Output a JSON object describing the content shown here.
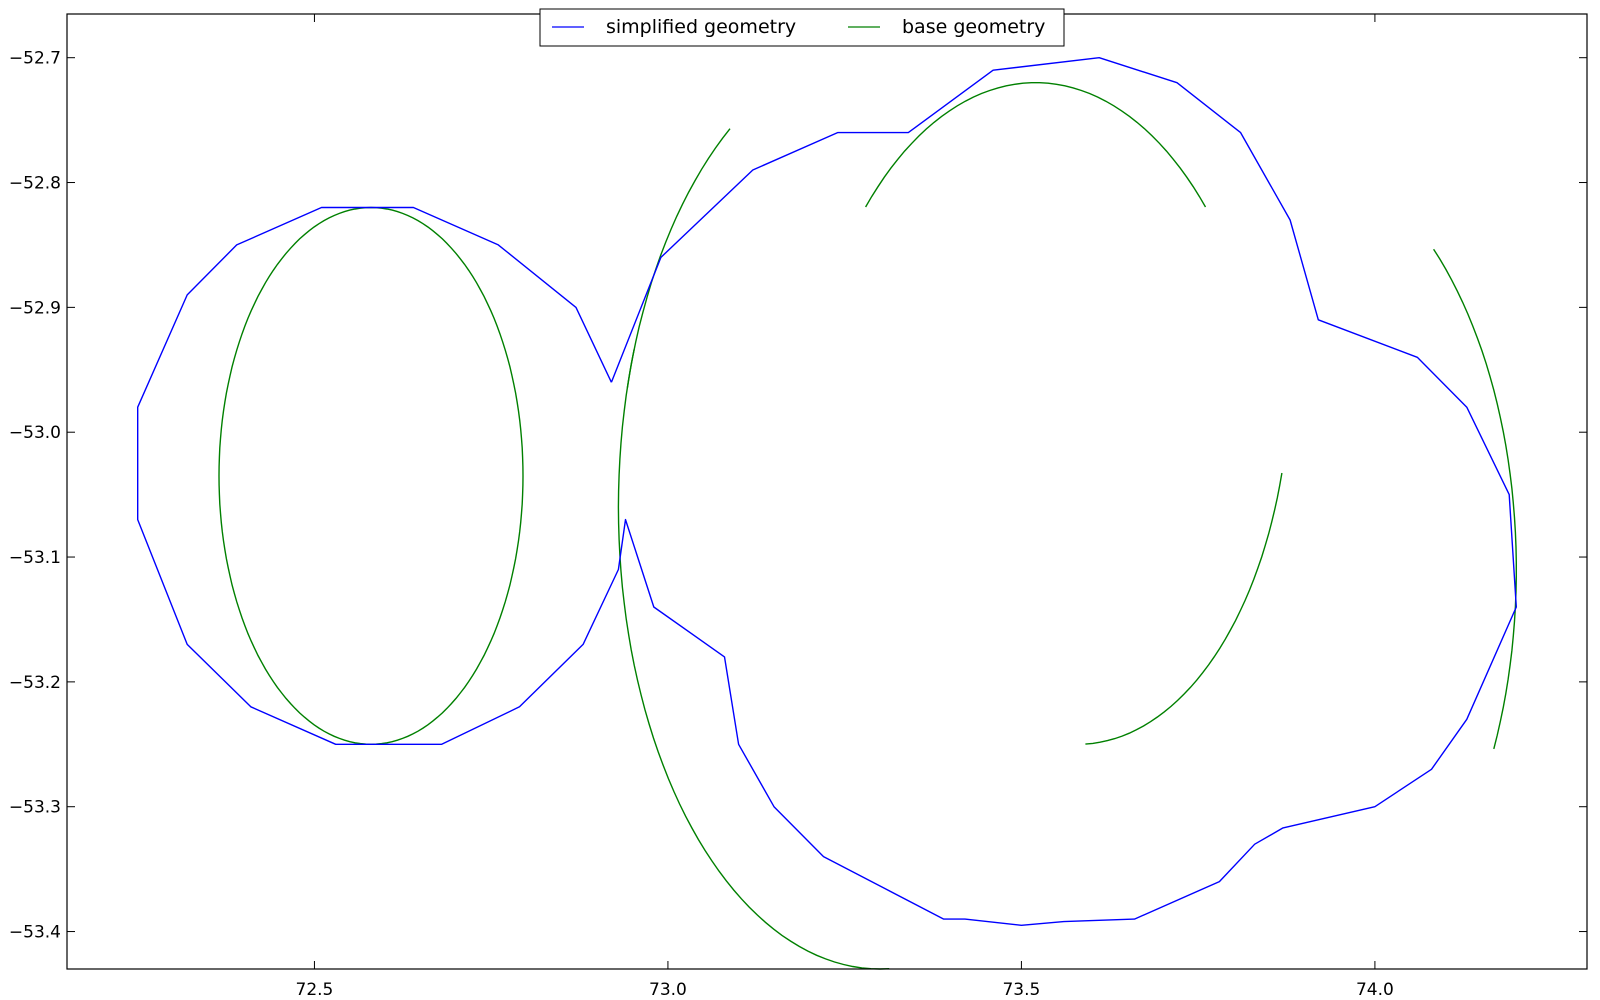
{
  "chart_data": {
    "type": "line",
    "title": "",
    "xlabel": "",
    "ylabel": "",
    "xlim": [
      72.15,
      74.3
    ],
    "ylim": [
      -53.43,
      -52.665
    ],
    "grid": false,
    "legend_position": "top-center",
    "x_ticks": [
      72.5,
      73.0,
      73.5,
      74.0
    ],
    "x_tick_labels": [
      "72.5",
      "73.0",
      "73.5",
      "74.0"
    ],
    "y_ticks": [
      -52.7,
      -52.8,
      -52.9,
      -53.0,
      -53.1,
      -53.2,
      -53.3,
      -53.4
    ],
    "y_tick_labels": [
      "−52.7",
      "−52.8",
      "−52.9",
      "−53.0",
      "−53.1",
      "−53.2",
      "−53.3",
      "−53.4"
    ],
    "series": [
      {
        "name": "simplified geometry",
        "color": "#0000ff",
        "points": [
          [
            72.92,
            -52.96
          ],
          [
            72.87,
            -52.9
          ],
          [
            72.76,
            -52.85
          ],
          [
            72.64,
            -52.82
          ],
          [
            72.51,
            -52.82
          ],
          [
            72.39,
            -52.85
          ],
          [
            72.32,
            -52.89
          ],
          [
            72.25,
            -52.98
          ],
          [
            72.25,
            -53.07
          ],
          [
            72.32,
            -53.17
          ],
          [
            72.41,
            -53.22
          ],
          [
            72.53,
            -53.25
          ],
          [
            72.68,
            -53.25
          ],
          [
            72.79,
            -53.22
          ],
          [
            72.88,
            -53.17
          ],
          [
            72.93,
            -53.11
          ],
          [
            72.94,
            -53.07
          ],
          [
            72.98,
            -53.14
          ],
          [
            73.08,
            -53.18
          ],
          [
            73.1,
            -53.25
          ],
          [
            73.15,
            -53.3
          ],
          [
            73.22,
            -53.34
          ],
          [
            73.39,
            -53.39
          ],
          [
            73.42,
            -53.39
          ],
          [
            73.5,
            -53.395
          ],
          [
            73.56,
            -53.392
          ],
          [
            73.66,
            -53.39
          ],
          [
            73.78,
            -53.36
          ],
          [
            73.83,
            -53.33
          ],
          [
            73.87,
            -53.317
          ],
          [
            74.0,
            -53.3
          ],
          [
            74.08,
            -53.27
          ],
          [
            74.13,
            -53.23
          ],
          [
            74.2,
            -53.14
          ],
          [
            74.19,
            -53.05
          ],
          [
            74.13,
            -52.98
          ],
          [
            74.06,
            -52.94
          ],
          [
            73.92,
            -52.91
          ],
          [
            73.88,
            -52.83
          ],
          [
            73.81,
            -52.76
          ],
          [
            73.72,
            -52.72
          ],
          [
            73.61,
            -52.7
          ],
          [
            73.46,
            -52.71
          ],
          [
            73.34,
            -52.76
          ],
          [
            73.24,
            -52.76
          ],
          [
            73.12,
            -52.79
          ],
          [
            72.99,
            -52.86
          ],
          [
            72.92,
            -52.96
          ]
        ]
      },
      {
        "name": "base geometry",
        "color": "#008000",
        "circles": [
          {
            "cx": 72.58,
            "cy": -53.035,
            "r": 0.215,
            "a0": -40,
            "a1": 320
          },
          {
            "cx": 73.3,
            "cy": -53.06,
            "r": 0.37,
            "a0": 160,
            "a1": 272
          },
          {
            "cx": 73.58,
            "cy": -52.95,
            "r": 0.3,
            "a0": 272,
            "a1": 345
          },
          {
            "cx": 73.86,
            "cy": -53.11,
            "r": 0.34,
            "a0": 335,
            "a1": 410
          },
          {
            "cx": 73.52,
            "cy": -53.06,
            "r": 0.34,
            "a0": 45,
            "a1": 135
          },
          {
            "cx": 73.3,
            "cy": -53.06,
            "r": 0.37,
            "a0": 125,
            "a1": 165
          }
        ]
      }
    ]
  }
}
